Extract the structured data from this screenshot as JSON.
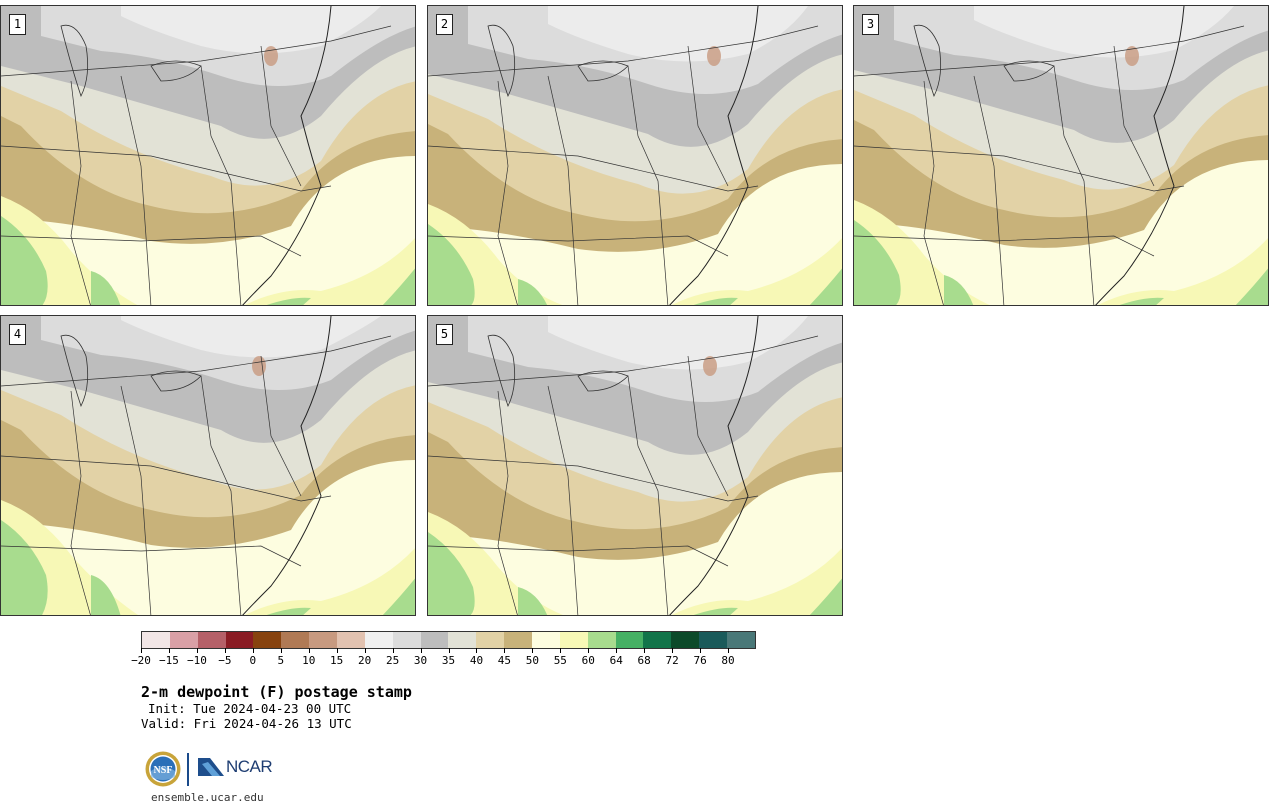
{
  "panels": [
    {
      "label": "1"
    },
    {
      "label": "2"
    },
    {
      "label": "3"
    },
    {
      "label": "4"
    },
    {
      "label": "5"
    }
  ],
  "colorbar": {
    "colors": [
      "#f2e6e6",
      "#d9a0a6",
      "#b56068",
      "#8a1c24",
      "#87430f",
      "#b07a55",
      "#c89a80",
      "#e2c2b0",
      "#f0f0f0",
      "#dcdcdc",
      "#bdbdbd",
      "#e2e2d6",
      "#e2d2a6",
      "#c8b27a",
      "#fdfde0",
      "#f7f8b6",
      "#a8dc8e",
      "#46b064",
      "#12744a",
      "#0c4a2a",
      "#1a5a5a",
      "#4a7878"
    ],
    "tick_labels": [
      "−20",
      "−15",
      "−10",
      "−5",
      "0",
      "5",
      "10",
      "15",
      "20",
      "25",
      "30",
      "35",
      "40",
      "45",
      "50",
      "55",
      "60",
      "64",
      "68",
      "72",
      "76",
      "80"
    ]
  },
  "title": "2-m dewpoint (F) postage stamp",
  "init": "Init: Tue 2024-04-23 00 UTC",
  "valid": "Valid: Fri 2024-04-26 13 UTC",
  "logos": {
    "nsf": "NSF",
    "ncar": "NCAR"
  },
  "site": "ensemble.ucar.edu"
}
